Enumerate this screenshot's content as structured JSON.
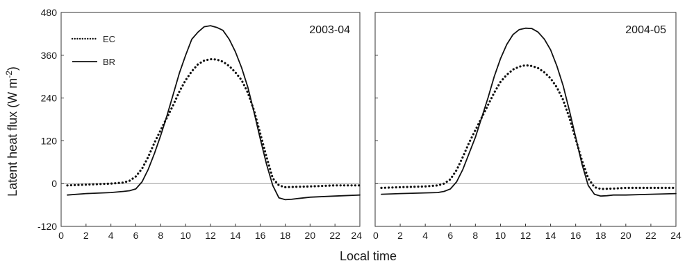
{
  "chart_data": {
    "type": "line",
    "ylabel_main": "Latent heat flux (W m",
    "ylabel_sup": "-2",
    "ylabel_close": ")",
    "xlabel": "Local time",
    "ylim": [
      -120,
      480
    ],
    "yticks": [
      "480",
      "360",
      "240",
      "120",
      "0",
      "-120"
    ],
    "ytick_values": [
      480,
      360,
      240,
      120,
      0,
      -120
    ],
    "xlim": [
      0,
      24
    ],
    "xticks": [
      "0",
      "2",
      "4",
      "6",
      "8",
      "10",
      "12",
      "14",
      "16",
      "18",
      "20",
      "22",
      "24"
    ],
    "xtick_values": [
      0,
      2,
      4,
      6,
      8,
      10,
      12,
      14,
      16,
      18,
      20,
      22,
      24
    ],
    "legend": {
      "placement": "top-left",
      "entries": [
        "EC",
        "BR"
      ]
    },
    "panels": [
      {
        "label": "2003-04",
        "series": [
          {
            "name": "EC",
            "style": "dotted",
            "x": [
              0.5,
              2,
              4,
              5,
              5.5,
              6,
              6.5,
              7,
              7.5,
              8,
              8.5,
              9,
              9.5,
              10,
              10.5,
              11,
              11.5,
              12,
              12.5,
              13,
              13.5,
              14,
              14.5,
              15,
              15.5,
              16,
              16.5,
              17,
              17.5,
              18,
              19,
              20,
              22,
              24
            ],
            "y": [
              -5,
              -3,
              0,
              3,
              8,
              20,
              42,
              75,
              115,
              150,
              185,
              220,
              258,
              290,
              315,
              335,
              345,
              349,
              348,
              342,
              330,
              312,
              290,
              255,
              205,
              140,
              75,
              15,
              -5,
              -10,
              -9,
              -8,
              -5,
              -5
            ]
          },
          {
            "name": "BR",
            "style": "solid",
            "x": [
              0.5,
              2,
              4,
              5,
              5.5,
              6,
              6.5,
              7,
              7.5,
              8,
              8.5,
              9,
              9.5,
              10,
              10.5,
              11,
              11.5,
              12,
              12.5,
              13,
              13.5,
              14,
              14.5,
              15,
              15.5,
              16,
              16.5,
              17,
              17.5,
              18,
              18.5,
              19,
              20,
              22,
              24
            ],
            "y": [
              -32,
              -28,
              -25,
              -22,
              -20,
              -15,
              5,
              40,
              85,
              135,
              190,
              250,
              310,
              360,
              405,
              425,
              440,
              443,
              438,
              430,
              405,
              370,
              325,
              270,
              200,
              125,
              55,
              -5,
              -40,
              -45,
              -44,
              -42,
              -38,
              -35,
              -32
            ]
          }
        ]
      },
      {
        "label": "2004-05",
        "series": [
          {
            "name": "EC",
            "style": "dotted",
            "x": [
              0.5,
              2,
              4,
              5,
              5.5,
              6,
              6.5,
              7,
              7.5,
              8,
              8.5,
              9,
              9.5,
              10,
              10.5,
              11,
              11.5,
              12,
              12.5,
              13,
              13.5,
              14,
              14.5,
              15,
              15.5,
              16,
              16.5,
              17,
              17.5,
              18,
              19,
              20,
              22,
              24
            ],
            "y": [
              -12,
              -10,
              -8,
              -5,
              0,
              12,
              38,
              75,
              115,
              150,
              185,
              220,
              255,
              285,
              305,
              320,
              328,
              332,
              330,
              324,
              312,
              295,
              270,
              235,
              185,
              125,
              65,
              15,
              -10,
              -15,
              -14,
              -12,
              -12,
              -12
            ]
          },
          {
            "name": "BR",
            "style": "solid",
            "x": [
              0.5,
              2,
              4,
              5,
              5.5,
              6,
              6.5,
              7,
              7.5,
              8,
              8.5,
              9,
              9.5,
              10,
              10.5,
              11,
              11.5,
              12,
              12.5,
              13,
              13.5,
              14,
              14.5,
              15,
              15.5,
              16,
              16.5,
              17,
              17.5,
              18,
              18.5,
              19,
              20,
              22,
              24
            ],
            "y": [
              -30,
              -28,
              -26,
              -25,
              -22,
              -15,
              5,
              40,
              85,
              130,
              185,
              240,
              300,
              350,
              390,
              418,
              432,
              436,
              435,
              425,
              405,
              375,
              330,
              275,
              205,
              130,
              55,
              -5,
              -30,
              -35,
              -34,
              -32,
              -32,
              -30,
              -28
            ]
          }
        ]
      }
    ]
  }
}
